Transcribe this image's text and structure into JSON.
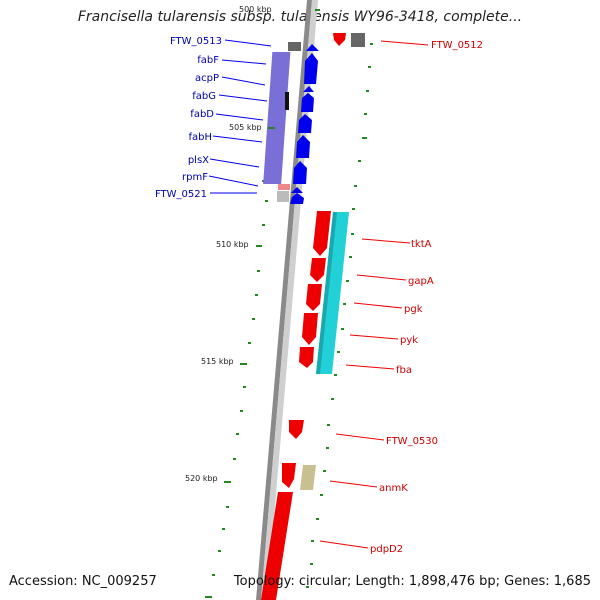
{
  "title": "Francisella tularensis subsp. tularensis WY96-3418, complete...",
  "footer": {
    "accession": "Accession: NC_009257",
    "summary": "Topology: circular; Length: 1,898,476 bp; Genes: 1,685"
  },
  "colors": {
    "backbone": "#888888",
    "gene_forward": "#0000ee",
    "gene_reverse": "#ee0000",
    "label_forward": "#0000b0",
    "label_reverse": "#cc0000",
    "cog_lipid": "#7a6fd6",
    "cog_energy": "#22d0d8",
    "cog_unknown": "#c8c090",
    "gc_marks": "#228822"
  },
  "ticks": [
    {
      "label": "500 kbp"
    },
    {
      "label": "505 kbp"
    },
    {
      "label": "510 kbp"
    },
    {
      "label": "515 kbp"
    },
    {
      "label": "520 kbp"
    }
  ],
  "forward_genes": [
    {
      "name": "FTW_0513"
    },
    {
      "name": "fabF"
    },
    {
      "name": "acpP"
    },
    {
      "name": "fabG"
    },
    {
      "name": "fabD"
    },
    {
      "name": "fabH"
    },
    {
      "name": "plsX"
    },
    {
      "name": "rpmF"
    },
    {
      "name": "FTW_0521"
    }
  ],
  "reverse_genes": [
    {
      "name": "FTW_0512"
    },
    {
      "name": "tktA"
    },
    {
      "name": "gapA"
    },
    {
      "name": "pgk"
    },
    {
      "name": "pyk"
    },
    {
      "name": "fba"
    },
    {
      "name": "FTW_0530"
    },
    {
      "name": "anmK"
    },
    {
      "name": "pdpD2"
    }
  ]
}
